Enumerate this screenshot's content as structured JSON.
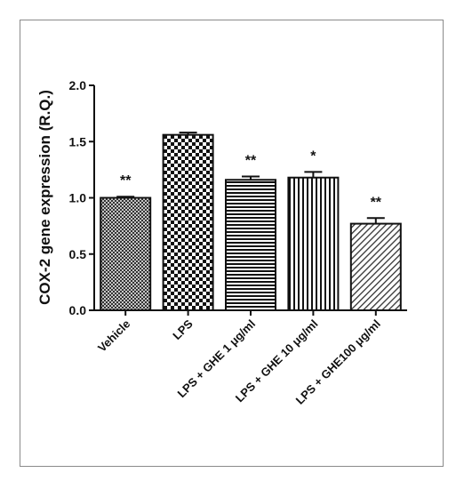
{
  "chart_data": {
    "type": "bar",
    "title": "",
    "xlabel": "",
    "ylabel": "COX-2 gene expression (R.Q.)",
    "ylim": [
      0,
      2.0
    ],
    "yticks": [
      "0.0",
      "0.5",
      "1.0",
      "1.5",
      "2.0"
    ],
    "grid": false,
    "legend": "none",
    "categories": [
      "Vehicle",
      "LPS",
      "LPS + GHE 1 μg/ml",
      "LPS + GHE 10 μg/ml",
      "LPS + GHE100 μg/ml"
    ],
    "values": [
      1.0,
      1.56,
      1.16,
      1.18,
      0.77
    ],
    "errors": [
      0.01,
      0.02,
      0.03,
      0.05,
      0.05
    ],
    "annotations": [
      "**",
      "",
      "**",
      "*",
      "**"
    ],
    "patterns": [
      "crosshatch",
      "checker",
      "horizontal-lines",
      "vertical-lines",
      "diagonal-lines"
    ],
    "colors": {
      "ink": "#111111",
      "frame": "#8a8a8a"
    }
  }
}
